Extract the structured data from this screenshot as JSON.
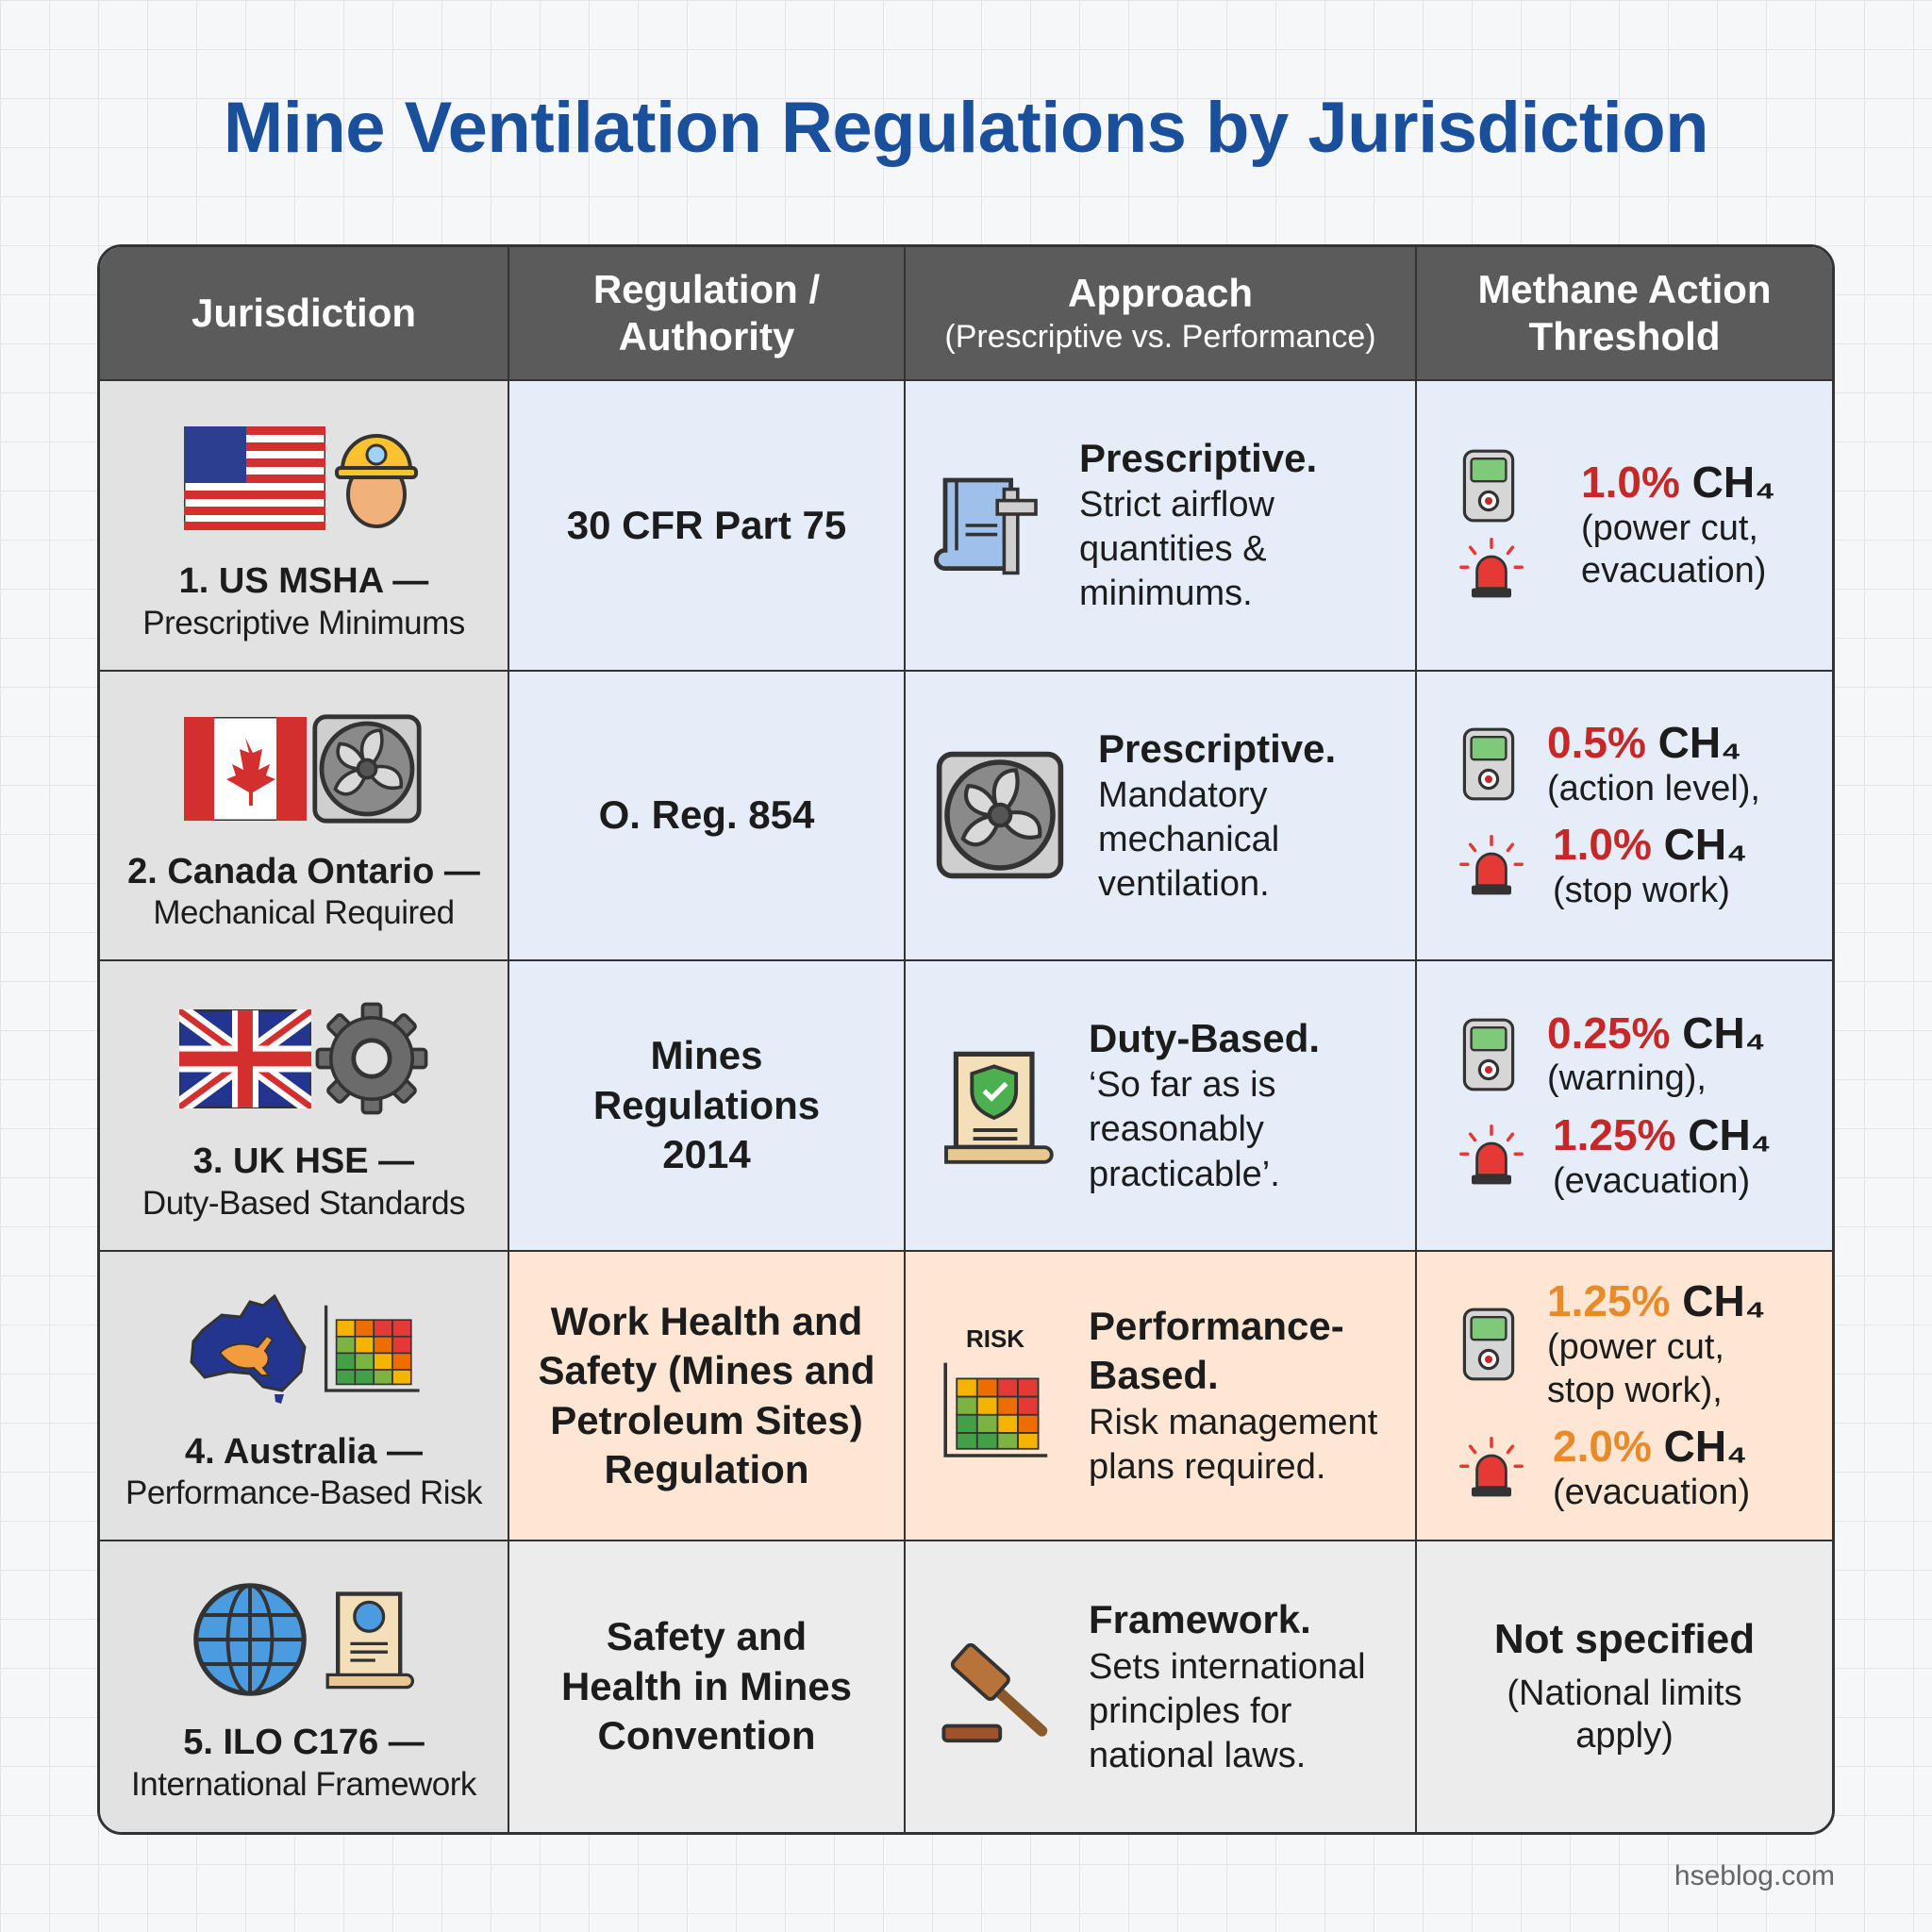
{
  "header": {
    "title": "Mine Ventilation Regulations by Jurisdiction"
  },
  "table": {
    "columns": [
      {
        "title": "Jurisdiction"
      },
      {
        "title": "Regulation / Authority"
      },
      {
        "title": "Approach",
        "subtitle": "(Prescriptive vs. Performance)"
      },
      {
        "title": "Methane Action Threshold"
      }
    ],
    "rows": [
      {
        "jurisdiction": {
          "name": "1. US MSHA —",
          "focus": "Prescriptive Minimums"
        },
        "regulation": "30 CFR Part 75",
        "approach": {
          "label": "Prescriptive.",
          "description": "Strict airflow quantities & minimums."
        },
        "thresholds": [
          {
            "level": "1.0%",
            "gas": "CH₄",
            "note": "(power cut, evacuation)",
            "color": "#c62828"
          }
        ]
      },
      {
        "jurisdiction": {
          "name": "2. Canada Ontario —",
          "focus": "Mechanical Required"
        },
        "regulation": "O. Reg. 854",
        "approach": {
          "label": "Prescriptive.",
          "description": "Mandatory mechanical ventilation."
        },
        "thresholds": [
          {
            "level": "0.5%",
            "gas": "CH₄",
            "note": "(action level),",
            "color": "#c62828"
          },
          {
            "level": "1.0%",
            "gas": "CH₄",
            "note": "(stop work)",
            "color": "#c62828"
          }
        ]
      },
      {
        "jurisdiction": {
          "name": "3. UK HSE —",
          "focus": "Duty-Based Standards"
        },
        "regulation": "Mines Regulations 2014",
        "approach": {
          "label": "Duty-Based.",
          "description": "‘So far as is reasonably practicable’."
        },
        "thresholds": [
          {
            "level": "0.25%",
            "gas": "CH₄",
            "note": "(warning),",
            "color": "#c62828"
          },
          {
            "level": "1.25%",
            "gas": "CH₄",
            "note": "(evacuation)",
            "color": "#c62828"
          }
        ]
      },
      {
        "jurisdiction": {
          "name": "4. Australia —",
          "focus": "Performance-Based Risk"
        },
        "regulation": "Work Health and Safety (Mines and Petroleum Sites) Regulation",
        "approach": {
          "label": "Performance-Based.",
          "description": "Risk management plans required.",
          "icon_label": "RISK"
        },
        "thresholds": [
          {
            "level": "1.25%",
            "gas": "CH₄",
            "note": "(power cut, stop work),",
            "color": "#e8892a"
          },
          {
            "level": "2.0%",
            "gas": "CH₄",
            "note": "(evacuation)",
            "color": "#e8892a"
          }
        ]
      },
      {
        "jurisdiction": {
          "name": "5. ILO C176 —",
          "focus": "International Framework"
        },
        "regulation": "Safety and Health in Mines Convention",
        "approach": {
          "label": "Framework.",
          "description": "Sets international principles for national laws."
        },
        "threshold_text": {
          "label": "Not specified",
          "note": "(National limits apply)"
        }
      }
    ]
  },
  "footer": {
    "source": "hseblog.com"
  }
}
